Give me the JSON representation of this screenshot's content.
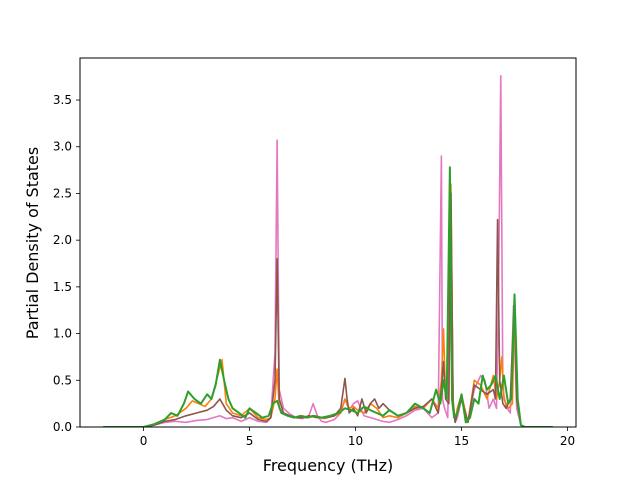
{
  "chart_data": {
    "type": "line",
    "title": "",
    "xlabel": "Frequency (THz)",
    "ylabel": "Partial Density of States",
    "xlim": [
      -3.0,
      20.4
    ],
    "ylim": [
      0.0,
      3.95
    ],
    "xticks": [
      0,
      5,
      10,
      15,
      20
    ],
    "xtick_labels": [
      "0",
      "5",
      "10",
      "15",
      "20"
    ],
    "yticks": [
      0.0,
      0.5,
      1.0,
      1.5,
      2.0,
      2.5,
      3.0,
      3.5
    ],
    "ytick_labels": [
      "0.0",
      "0.5",
      "1.0",
      "1.5",
      "2.0",
      "2.5",
      "3.0",
      "3.5"
    ],
    "grid": false,
    "legend": "none",
    "series": [
      {
        "color": "#e377c2",
        "x": [
          -1.9,
          -0.5,
          0.0,
          0.5,
          1.0,
          1.5,
          2.0,
          2.5,
          3.0,
          3.3,
          3.6,
          3.9,
          4.2,
          4.6,
          5.0,
          5.4,
          5.8,
          6.0,
          6.2,
          6.3,
          6.4,
          6.6,
          6.9,
          7.2,
          7.5,
          7.8,
          8.0,
          8.2,
          8.4,
          8.6,
          9.0,
          9.3,
          9.5,
          9.7,
          9.9,
          10.1,
          10.4,
          10.7,
          11.0,
          11.3,
          11.6,
          12.0,
          12.4,
          12.8,
          13.2,
          13.6,
          13.9,
          14.05,
          14.1,
          14.2,
          14.35,
          14.5,
          14.6,
          14.7,
          14.8,
          15.0,
          15.3,
          15.6,
          15.9,
          16.1,
          16.3,
          16.5,
          16.65,
          16.75,
          16.85,
          16.95,
          17.1,
          17.3,
          17.45,
          17.6,
          17.8,
          18.0,
          19.3
        ],
        "y": [
          0.0,
          0.0,
          0.0,
          0.02,
          0.05,
          0.06,
          0.05,
          0.07,
          0.08,
          0.1,
          0.12,
          0.09,
          0.1,
          0.06,
          0.1,
          0.06,
          0.05,
          0.1,
          0.8,
          3.07,
          0.4,
          0.2,
          0.14,
          0.1,
          0.09,
          0.12,
          0.25,
          0.12,
          0.06,
          0.05,
          0.08,
          0.15,
          0.3,
          0.18,
          0.25,
          0.28,
          0.12,
          0.1,
          0.08,
          0.06,
          0.05,
          0.08,
          0.12,
          0.18,
          0.2,
          0.1,
          0.15,
          2.9,
          0.3,
          0.2,
          0.1,
          2.4,
          0.2,
          0.05,
          0.1,
          0.3,
          0.05,
          0.4,
          0.55,
          0.5,
          0.2,
          0.3,
          0.2,
          1.5,
          3.76,
          0.4,
          0.22,
          0.15,
          1.3,
          0.2,
          0.02,
          0.0,
          0.0
        ]
      },
      {
        "color": "#ff7f0e",
        "x": [
          -1.9,
          -0.5,
          0.0,
          0.5,
          1.0,
          1.5,
          2.0,
          2.3,
          2.6,
          2.9,
          3.2,
          3.5,
          3.7,
          3.9,
          4.2,
          4.6,
          5.0,
          5.4,
          5.8,
          6.0,
          6.2,
          6.3,
          6.4,
          6.6,
          6.9,
          7.2,
          7.5,
          7.8,
          8.1,
          8.5,
          9.0,
          9.3,
          9.5,
          9.7,
          9.9,
          10.1,
          10.4,
          10.7,
          11.0,
          11.3,
          11.6,
          12.0,
          12.4,
          12.8,
          13.2,
          13.6,
          13.9,
          14.05,
          14.15,
          14.25,
          14.4,
          14.5,
          14.6,
          14.7,
          14.8,
          15.0,
          15.3,
          15.6,
          15.9,
          16.2,
          16.5,
          16.65,
          16.8,
          16.9,
          17.0,
          17.2,
          17.4,
          17.5,
          17.6,
          17.8,
          18.0,
          19.3
        ],
        "y": [
          0.0,
          0.0,
          0.0,
          0.03,
          0.08,
          0.12,
          0.2,
          0.28,
          0.25,
          0.22,
          0.3,
          0.55,
          0.72,
          0.25,
          0.15,
          0.12,
          0.2,
          0.1,
          0.08,
          0.1,
          0.3,
          0.62,
          0.2,
          0.15,
          0.12,
          0.1,
          0.12,
          0.1,
          0.12,
          0.09,
          0.12,
          0.15,
          0.3,
          0.2,
          0.22,
          0.18,
          0.15,
          0.25,
          0.2,
          0.1,
          0.12,
          0.1,
          0.15,
          0.22,
          0.2,
          0.3,
          0.2,
          0.5,
          1.05,
          0.3,
          0.3,
          2.6,
          0.3,
          0.05,
          0.2,
          0.35,
          0.05,
          0.5,
          0.45,
          0.3,
          0.55,
          0.3,
          0.5,
          0.75,
          0.3,
          0.2,
          0.25,
          1.35,
          0.3,
          0.02,
          0.0,
          0.0
        ]
      },
      {
        "color": "#8c564b",
        "x": [
          -1.9,
          -0.5,
          0.0,
          0.5,
          1.0,
          1.5,
          2.0,
          2.5,
          3.0,
          3.3,
          3.6,
          3.9,
          4.2,
          4.6,
          5.0,
          5.4,
          5.8,
          6.0,
          6.2,
          6.3,
          6.4,
          6.6,
          6.9,
          7.2,
          7.5,
          7.8,
          8.2,
          8.6,
          9.0,
          9.3,
          9.5,
          9.6,
          9.7,
          9.9,
          10.1,
          10.3,
          10.5,
          10.7,
          10.9,
          11.1,
          11.3,
          11.6,
          12.0,
          12.4,
          12.8,
          13.2,
          13.6,
          13.9,
          14.05,
          14.15,
          14.25,
          14.4,
          14.5,
          14.6,
          14.7,
          14.8,
          15.0,
          15.3,
          15.6,
          15.9,
          16.2,
          16.5,
          16.6,
          16.7,
          16.8,
          16.95,
          17.1,
          17.3,
          17.5,
          17.6,
          17.8,
          18.0,
          19.3
        ],
        "y": [
          0.0,
          0.0,
          0.0,
          0.02,
          0.06,
          0.08,
          0.12,
          0.15,
          0.18,
          0.22,
          0.3,
          0.18,
          0.12,
          0.1,
          0.15,
          0.08,
          0.06,
          0.1,
          0.5,
          1.8,
          0.3,
          0.15,
          0.12,
          0.1,
          0.1,
          0.12,
          0.1,
          0.1,
          0.12,
          0.2,
          0.52,
          0.3,
          0.15,
          0.2,
          0.12,
          0.3,
          0.15,
          0.25,
          0.3,
          0.2,
          0.25,
          0.18,
          0.12,
          0.15,
          0.2,
          0.22,
          0.3,
          0.15,
          0.4,
          0.7,
          0.3,
          0.25,
          2.5,
          0.25,
          0.05,
          0.15,
          0.3,
          0.05,
          0.45,
          0.4,
          0.35,
          0.4,
          0.3,
          2.22,
          0.5,
          0.25,
          0.2,
          0.3,
          1.4,
          0.3,
          0.02,
          0.0,
          0.0
        ]
      },
      {
        "color": "#2ca02c",
        "x": [
          -1.9,
          -0.5,
          0.0,
          0.5,
          1.0,
          1.3,
          1.6,
          1.9,
          2.1,
          2.4,
          2.7,
          3.0,
          3.2,
          3.4,
          3.6,
          3.8,
          4.0,
          4.2,
          4.5,
          4.8,
          5.0,
          5.3,
          5.6,
          5.9,
          6.1,
          6.3,
          6.5,
          6.8,
          7.1,
          7.4,
          7.7,
          8.0,
          8.4,
          8.8,
          9.2,
          9.5,
          9.8,
          10.1,
          10.4,
          10.7,
          11.0,
          11.3,
          11.6,
          12.0,
          12.4,
          12.8,
          13.2,
          13.5,
          13.8,
          14.0,
          14.15,
          14.3,
          14.45,
          14.55,
          14.65,
          14.8,
          15.0,
          15.2,
          15.4,
          15.6,
          15.8,
          16.0,
          16.2,
          16.4,
          16.6,
          16.8,
          17.0,
          17.2,
          17.35,
          17.5,
          17.65,
          17.8,
          18.0,
          19.3
        ],
        "y": [
          0.0,
          0.0,
          0.0,
          0.03,
          0.08,
          0.15,
          0.12,
          0.25,
          0.38,
          0.3,
          0.25,
          0.35,
          0.3,
          0.45,
          0.72,
          0.5,
          0.3,
          0.2,
          0.15,
          0.1,
          0.2,
          0.15,
          0.1,
          0.12,
          0.25,
          0.28,
          0.15,
          0.12,
          0.1,
          0.12,
          0.1,
          0.12,
          0.1,
          0.12,
          0.15,
          0.2,
          0.18,
          0.15,
          0.22,
          0.18,
          0.15,
          0.12,
          0.18,
          0.12,
          0.15,
          0.25,
          0.2,
          0.15,
          0.4,
          0.25,
          0.5,
          0.3,
          2.78,
          0.3,
          0.1,
          0.15,
          0.35,
          0.05,
          0.1,
          0.3,
          0.25,
          0.55,
          0.4,
          0.45,
          0.55,
          0.3,
          0.55,
          0.25,
          0.3,
          1.42,
          0.3,
          0.02,
          0.0,
          0.0
        ]
      }
    ]
  }
}
